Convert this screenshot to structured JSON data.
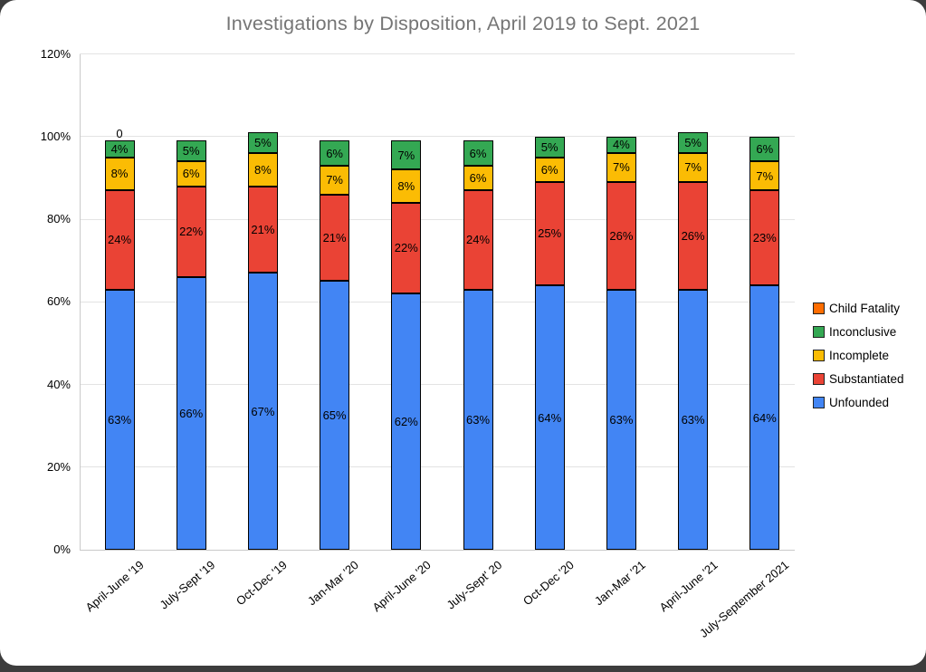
{
  "chart_data": {
    "type": "bar",
    "stacked": true,
    "orientation": "vertical",
    "title": "Investigations by Disposition, April 2019 to Sept. 2021",
    "categories": [
      "April-June '19",
      "July-Sept '19",
      "Oct-Dec '19",
      "Jan-Mar '20",
      "April-June '20",
      "July-Sept' 20",
      "Oct-Dec '20",
      "Jan-Mar '21",
      "April-June '21",
      "July-September 2021"
    ],
    "series": [
      {
        "name": "Unfounded",
        "color": "#4285f4",
        "values": [
          63,
          66,
          67,
          65,
          62,
          63,
          64,
          63,
          63,
          64
        ],
        "data_labels": [
          "63%",
          "66%",
          "67%",
          "65%",
          "62%",
          "63%",
          "64%",
          "63%",
          "63%",
          "64%"
        ]
      },
      {
        "name": "Substantiated",
        "color": "#ea4335",
        "values": [
          24,
          22,
          21,
          21,
          22,
          24,
          25,
          26,
          26,
          23
        ],
        "data_labels": [
          "24%",
          "22%",
          "21%",
          "21%",
          "22%",
          "24%",
          "25%",
          "26%",
          "26%",
          "23%"
        ]
      },
      {
        "name": "Incomplete",
        "color": "#fbbc04",
        "values": [
          8,
          6,
          8,
          7,
          8,
          6,
          6,
          7,
          7,
          7
        ],
        "data_labels": [
          "8%",
          "6%",
          "8%",
          "7%",
          "8%",
          "6%",
          "6%",
          "7%",
          "7%",
          "7%"
        ]
      },
      {
        "name": "Inconclusive",
        "color": "#34a853",
        "values": [
          4,
          5,
          5,
          6,
          7,
          6,
          5,
          4,
          5,
          6
        ],
        "data_labels": [
          "4%",
          "5%",
          "5%",
          "6%",
          "7%",
          "6%",
          "5%",
          "4%",
          "5%",
          "6%"
        ]
      },
      {
        "name": "Child Fatality",
        "color": "#ff6d01",
        "values": [
          0,
          0,
          0,
          0,
          0,
          0,
          0,
          0,
          0,
          0
        ],
        "data_labels": [
          "0",
          "",
          "",
          "",
          "",
          "",
          "",
          "",
          "",
          ""
        ]
      }
    ],
    "y_axis": {
      "min": 0,
      "max": 120,
      "tick_step": 20,
      "tick_labels": [
        "0%",
        "20%",
        "40%",
        "60%",
        "80%",
        "100%",
        "120%"
      ],
      "grid": true
    },
    "legend": {
      "position": "right",
      "entries": [
        {
          "label": "Child Fatality",
          "color": "#ff6d01"
        },
        {
          "label": "Inconclusive",
          "color": "#34a853"
        },
        {
          "label": "Incomplete",
          "color": "#fbbc04"
        },
        {
          "label": "Substantiated",
          "color": "#ea4335"
        },
        {
          "label": "Unfounded",
          "color": "#4285f4"
        }
      ]
    }
  }
}
